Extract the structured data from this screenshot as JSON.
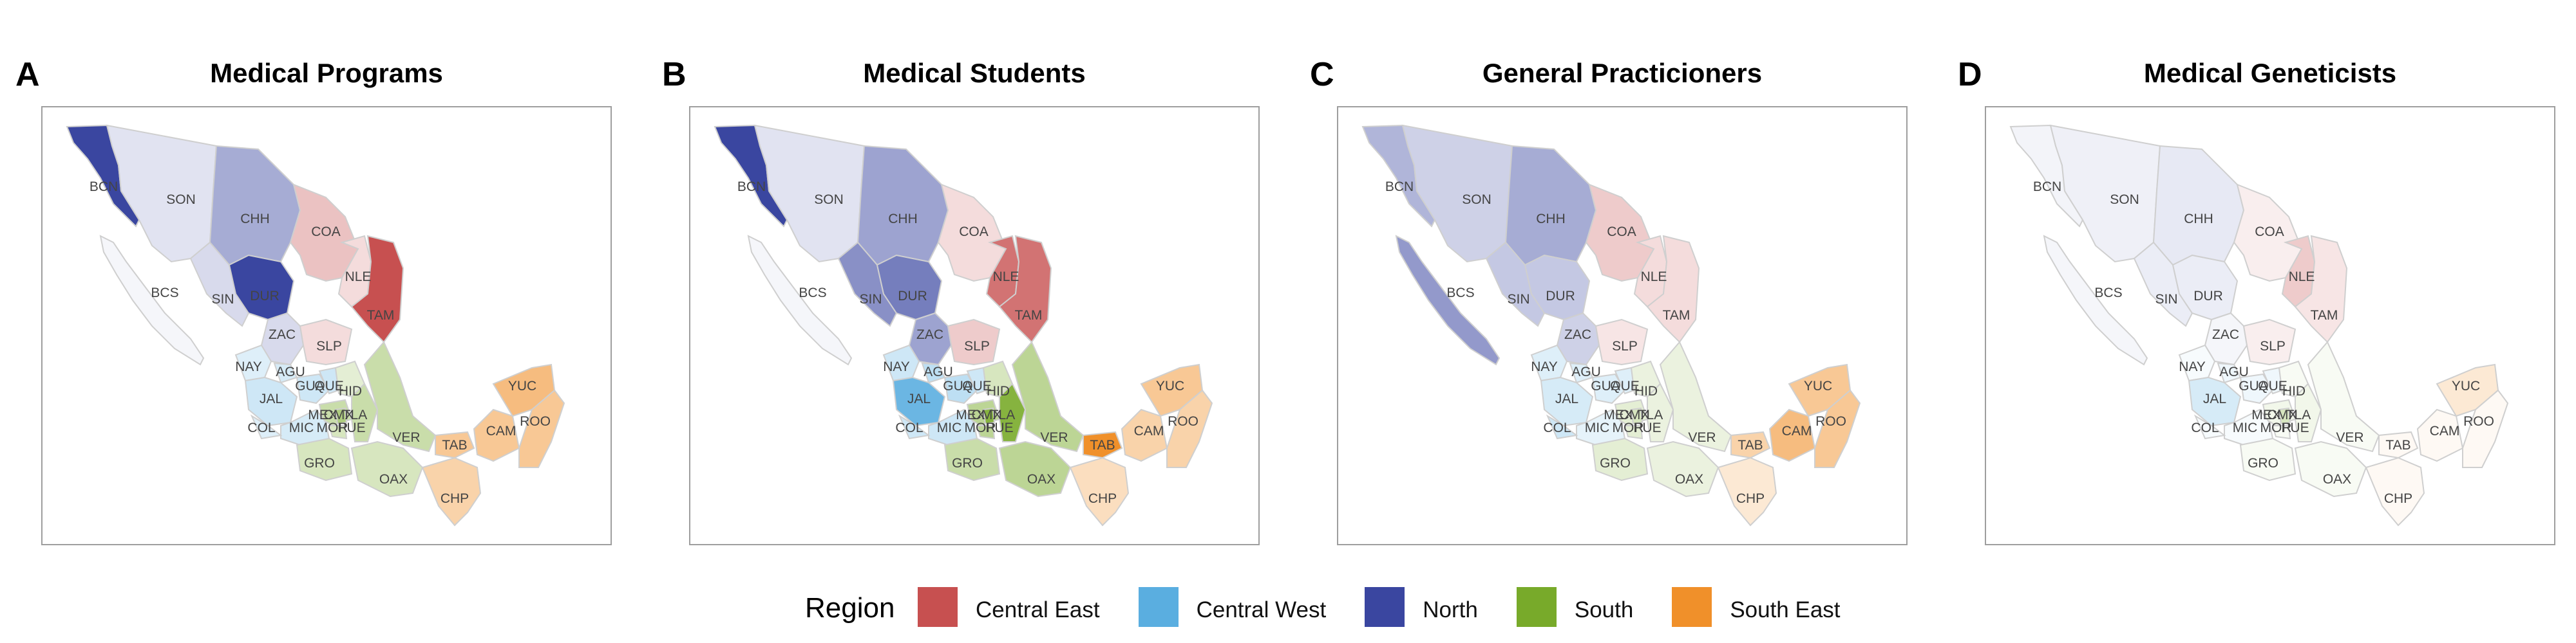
{
  "panels": [
    {
      "letter": "A",
      "title": "Medical Programs",
      "intensity": {
        "BCN": 1.0,
        "SON": 0.15,
        "CHH": 0.45,
        "COA": 0.35,
        "NLE": 0.2,
        "TAM": 1.0,
        "BCS": 0.02,
        "SIN": 0.2,
        "DUR": 1.0,
        "ZAC": 0.2,
        "SLP": 0.2,
        "AGU": 0.25,
        "NAY": 0.2,
        "JAL": 0.3,
        "GUA": 0.3,
        "QUE": 0.3,
        "HID": 0.2,
        "MEX": 0.4,
        "CMX": 0.6,
        "TLA": 0.3,
        "MOR": 0.3,
        "PUE": 0.4,
        "VER": 0.4,
        "MIC": 0.25,
        "COL": 0.2,
        "GRO": 0.3,
        "OAX": 0.3,
        "TAB": 0.5,
        "CAM": 0.5,
        "YUC": 0.6,
        "ROO": 0.5,
        "CHP": 0.4
      }
    },
    {
      "letter": "B",
      "title": "Medical Students",
      "intensity": {
        "BCN": 1.0,
        "SON": 0.15,
        "CHH": 0.5,
        "COA": 0.2,
        "NLE": 0.8,
        "TAM": 0.8,
        "BCS": 0.02,
        "SIN": 0.6,
        "DUR": 0.7,
        "ZAC": 0.5,
        "SLP": 0.3,
        "AGU": 0.4,
        "NAY": 0.3,
        "JAL": 0.9,
        "GUA": 0.4,
        "QUE": 0.3,
        "HID": 0.3,
        "MEX": 0.5,
        "CMX": 0.9,
        "TLA": 0.6,
        "MOR": 0.5,
        "PUE": 0.9,
        "VER": 0.5,
        "MIC": 0.3,
        "COL": 0.3,
        "GRO": 0.4,
        "OAX": 0.5,
        "TAB": 1.0,
        "CAM": 0.4,
        "YUC": 0.5,
        "ROO": 0.4,
        "CHP": 0.3
      }
    },
    {
      "letter": "C",
      "title": "General Practicioners",
      "intensity": {
        "BCN": 0.4,
        "SON": 0.25,
        "CHH": 0.45,
        "COA": 0.3,
        "NLE": 0.2,
        "TAM": 0.2,
        "BCS": 0.55,
        "SIN": 0.3,
        "DUR": 0.3,
        "ZAC": 0.25,
        "SLP": 0.15,
        "AGU": 0.2,
        "NAY": 0.2,
        "JAL": 0.25,
        "GUA": 0.2,
        "QUE": 0.2,
        "HID": 0.15,
        "MEX": 0.2,
        "CMX": 0.3,
        "TLA": 0.2,
        "MOR": 0.2,
        "PUE": 0.15,
        "VER": 0.15,
        "MIC": 0.15,
        "COL": 0.3,
        "GRO": 0.2,
        "OAX": 0.15,
        "TAB": 0.4,
        "CAM": 0.6,
        "YUC": 0.5,
        "ROO": 0.5,
        "CHP": 0.2
      }
    },
    {
      "letter": "D",
      "title": "Medical Geneticists",
      "intensity": {
        "BCN": 0.06,
        "SON": 0.08,
        "CHH": 0.12,
        "COA": 0.1,
        "NLE": 0.3,
        "TAM": 0.15,
        "BCS": 0.03,
        "SIN": 0.1,
        "DUR": 0.1,
        "ZAC": 0.05,
        "SLP": 0.1,
        "AGU": 0.1,
        "NAY": 0.05,
        "JAL": 0.25,
        "GUA": 0.1,
        "QUE": 0.1,
        "HID": 0.05,
        "MEX": 0.1,
        "CMX": 0.3,
        "TLA": 0.05,
        "MOR": 0.05,
        "PUE": 0.1,
        "VER": 0.05,
        "MIC": 0.05,
        "COL": 0.05,
        "GRO": 0.05,
        "OAX": 0.05,
        "TAB": 0.05,
        "CAM": 0.05,
        "YUC": 0.2,
        "ROO": 0.05,
        "CHP": 0.05
      }
    }
  ],
  "states": [
    {
      "code": "BCN",
      "region": "North"
    },
    {
      "code": "SON",
      "region": "North"
    },
    {
      "code": "CHH",
      "region": "North"
    },
    {
      "code": "COA",
      "region": "Central East"
    },
    {
      "code": "NLE",
      "region": "Central East"
    },
    {
      "code": "TAM",
      "region": "Central East"
    },
    {
      "code": "BCS",
      "region": "North"
    },
    {
      "code": "SIN",
      "region": "North"
    },
    {
      "code": "DUR",
      "region": "North"
    },
    {
      "code": "ZAC",
      "region": "North"
    },
    {
      "code": "SLP",
      "region": "Central East"
    },
    {
      "code": "AGU",
      "region": "Central West"
    },
    {
      "code": "NAY",
      "region": "Central West"
    },
    {
      "code": "JAL",
      "region": "Central West"
    },
    {
      "code": "GUA",
      "region": "Central West"
    },
    {
      "code": "QUE",
      "region": "Central West"
    },
    {
      "code": "HID",
      "region": "South"
    },
    {
      "code": "MEX",
      "region": "South"
    },
    {
      "code": "CMX",
      "region": "South"
    },
    {
      "code": "TLA",
      "region": "South"
    },
    {
      "code": "MOR",
      "region": "South"
    },
    {
      "code": "PUE",
      "region": "South"
    },
    {
      "code": "VER",
      "region": "South"
    },
    {
      "code": "MIC",
      "region": "Central West"
    },
    {
      "code": "COL",
      "region": "Central West"
    },
    {
      "code": "GRO",
      "region": "South"
    },
    {
      "code": "OAX",
      "region": "South"
    },
    {
      "code": "TAB",
      "region": "South East"
    },
    {
      "code": "CAM",
      "region": "South East"
    },
    {
      "code": "YUC",
      "region": "South East"
    },
    {
      "code": "ROO",
      "region": "South East"
    },
    {
      "code": "CHP",
      "region": "South East"
    }
  ],
  "legend": {
    "title": "Region",
    "items": [
      {
        "label": "Central East",
        "color": "#c75050"
      },
      {
        "label": "Central West",
        "color": "#5aaee0"
      },
      {
        "label": "North",
        "color": "#3a46a0"
      },
      {
        "label": "South",
        "color": "#78aa2a"
      },
      {
        "label": "South East",
        "color": "#f0902a"
      }
    ]
  }
}
